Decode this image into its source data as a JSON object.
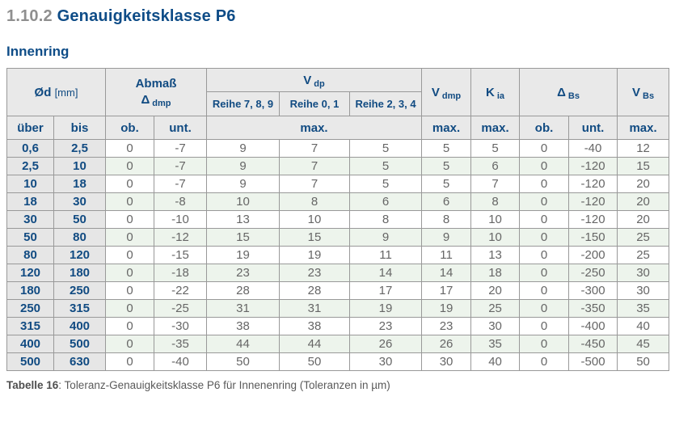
{
  "page": {
    "section_number": "1.10.2",
    "section_title": "Genauigkeitsklasse P6",
    "subtitle": "Innenring",
    "caption_label": "Tabelle 16",
    "caption_text": ": Toleranz-Genauigkeitsklasse P6 für Innenenring (Toleranzen in µm)"
  },
  "colors": {
    "accent_blue": "#0e4c87",
    "header_bg": "#e9e9e9",
    "rowhead_bg": "#e6e6e6",
    "row_alt_green": "#edf4ec",
    "data_text": "#666666",
    "border_gray": "#999999",
    "section_number_gray": "#8f8f8f"
  },
  "table": {
    "header": {
      "od_main": "Ød",
      "od_unit": "[mm]",
      "abmass_line1": "Abmaß",
      "abmass_sym": "Δ",
      "abmass_sub": "dmp",
      "vdp_main": "V",
      "vdp_sub": "dp",
      "reihe_789": "Reihe 7, 8, 9",
      "reihe_01": "Reihe 0, 1",
      "reihe_234": "Reihe 2, 3, 4",
      "vdmp_main": "V",
      "vdmp_sub": "dmp",
      "kia_main": "K",
      "kia_sub": "ia",
      "dbs_sym": "Δ",
      "dbs_sub": "Bs",
      "vbs_main": "V",
      "vbs_sub": "Bs",
      "ueber": "über",
      "bis": "bis",
      "ob": "ob.",
      "unt": "unt.",
      "max": "max."
    },
    "rows": [
      [
        "0,6",
        "2,5",
        "0",
        "-7",
        "9",
        "7",
        "5",
        "5",
        "5",
        "0",
        "-40",
        "12"
      ],
      [
        "2,5",
        "10",
        "0",
        "-7",
        "9",
        "7",
        "5",
        "5",
        "6",
        "0",
        "-120",
        "15"
      ],
      [
        "10",
        "18",
        "0",
        "-7",
        "9",
        "7",
        "5",
        "5",
        "7",
        "0",
        "-120",
        "20"
      ],
      [
        "18",
        "30",
        "0",
        "-8",
        "10",
        "8",
        "6",
        "6",
        "8",
        "0",
        "-120",
        "20"
      ],
      [
        "30",
        "50",
        "0",
        "-10",
        "13",
        "10",
        "8",
        "8",
        "10",
        "0",
        "-120",
        "20"
      ],
      [
        "50",
        "80",
        "0",
        "-12",
        "15",
        "15",
        "9",
        "9",
        "10",
        "0",
        "-150",
        "25"
      ],
      [
        "80",
        "120",
        "0",
        "-15",
        "19",
        "19",
        "11",
        "11",
        "13",
        "0",
        "-200",
        "25"
      ],
      [
        "120",
        "180",
        "0",
        "-18",
        "23",
        "23",
        "14",
        "14",
        "18",
        "0",
        "-250",
        "30"
      ],
      [
        "180",
        "250",
        "0",
        "-22",
        "28",
        "28",
        "17",
        "17",
        "20",
        "0",
        "-300",
        "30"
      ],
      [
        "250",
        "315",
        "0",
        "-25",
        "31",
        "31",
        "19",
        "19",
        "25",
        "0",
        "-350",
        "35"
      ],
      [
        "315",
        "400",
        "0",
        "-30",
        "38",
        "38",
        "23",
        "23",
        "30",
        "0",
        "-400",
        "40"
      ],
      [
        "400",
        "500",
        "0",
        "-35",
        "44",
        "44",
        "26",
        "26",
        "35",
        "0",
        "-450",
        "45"
      ],
      [
        "500",
        "630",
        "0",
        "-40",
        "50",
        "50",
        "30",
        "30",
        "40",
        "0",
        "-500",
        "50"
      ]
    ]
  }
}
